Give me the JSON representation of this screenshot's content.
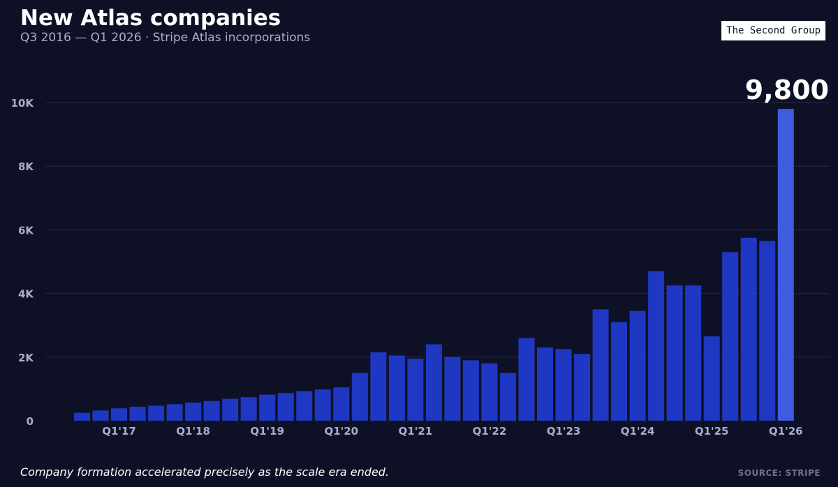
{
  "header": {
    "title": "New Atlas companies",
    "subtitle": "Q3 2016 — Q1 2026 · Stripe Atlas incorporations",
    "badge": "The Second Group"
  },
  "footer": {
    "note": "Company formation accelerated precisely as the scale era ended.",
    "source": "SOURCE: STRIPE"
  },
  "colors": {
    "background": "#0e1126",
    "bar": "#1f38c3",
    "highlight_bar": "#3d5ce0",
    "grid": "#242845",
    "axis_text": "#a9adcf"
  },
  "chart_data": {
    "type": "bar",
    "title": "",
    "xlabel": "",
    "ylabel": "",
    "ylim": [
      0,
      10000
    ],
    "y_ticks": [
      0,
      2000,
      4000,
      6000,
      8000,
      10000
    ],
    "y_tick_labels": [
      "0",
      "2K",
      "4K",
      "6K",
      "8K",
      "10K"
    ],
    "grid": true,
    "categories": [
      "Q3'16",
      "Q4'16",
      "Q1'17",
      "Q2'17",
      "Q3'17",
      "Q4'17",
      "Q1'18",
      "Q2'18",
      "Q3'18",
      "Q4'18",
      "Q1'19",
      "Q2'19",
      "Q3'19",
      "Q4'19",
      "Q1'20",
      "Q2'20",
      "Q3'20",
      "Q4'20",
      "Q1'21",
      "Q2'21",
      "Q3'21",
      "Q4'21",
      "Q1'22",
      "Q2'22",
      "Q3'22",
      "Q4'22",
      "Q1'23",
      "Q2'23",
      "Q3'23",
      "Q4'23",
      "Q1'24",
      "Q2'24",
      "Q3'24",
      "Q4'24",
      "Q1'25",
      "Q2'25",
      "Q3'25",
      "Q4'25",
      "Q1'26"
    ],
    "x_tick_labels": [
      "Q1'17",
      "Q1'18",
      "Q1'19",
      "Q1'20",
      "Q1'21",
      "Q1'22",
      "Q1'23",
      "Q1'24",
      "Q1'25",
      "Q1'26"
    ],
    "values": [
      250,
      320,
      390,
      440,
      470,
      520,
      570,
      620,
      690,
      740,
      820,
      870,
      930,
      980,
      1050,
      1500,
      2150,
      2050,
      1950,
      2400,
      2000,
      1900,
      1800,
      1500,
      2600,
      2300,
      2250,
      2100,
      3500,
      3100,
      3450,
      4700,
      4250,
      4250,
      2650,
      5300,
      5750,
      5650,
      9800
    ],
    "highlight_index": 38,
    "annotation": "9,800"
  }
}
